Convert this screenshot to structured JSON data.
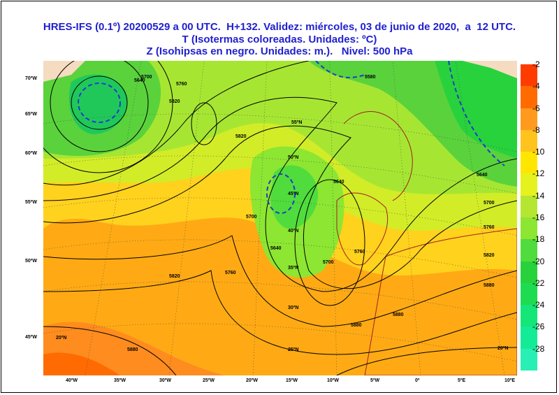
{
  "title": {
    "line1": "HRES-IFS (0.1º) 20200529 a 00 UTC.  H+132. Validez: miércoles, 03 de junio de 2020,  a  12 UTC.",
    "line2": "T (Isotermas coloreadas. Unidades: ºC)",
    "line3": "Z (Isohipsas en negro. Unidades: m.).   Nivel: 500 hPa"
  },
  "y_ticks": [
    "70ºW",
    "65ºW",
    "60ºW",
    "55ºW",
    "50ºW",
    "45ºW"
  ],
  "x_ticks": [
    "40ºW",
    "35ºW",
    "30ºW",
    "25ºW",
    "20ºW",
    "15ºW",
    "10ºW",
    "5ºW",
    "0º",
    "5ºE",
    "10ºE"
  ],
  "grid_labels": [
    "55ºN",
    "50ºN",
    "45ºN",
    "40ºN",
    "35ºN",
    "30ºN",
    "25ºN",
    "20ºN",
    "20ºN"
  ],
  "isohypse_labels": [
    "5700",
    "5760",
    "5820",
    "5640",
    "5640",
    "5700",
    "5760",
    "5820",
    "5640",
    "5700",
    "5760",
    "5820",
    "5880",
    "5880",
    "5580",
    "5640",
    "5700",
    "5760",
    "5820",
    "5880",
    "5880"
  ],
  "legend": {
    "labels": [
      "-2",
      "-4",
      "-6",
      "-8",
      "-10",
      "-12",
      "-14",
      "-16",
      "-18",
      "-20",
      "-22",
      "-24",
      "-26",
      "-28"
    ],
    "colors": [
      "#ff3c00",
      "#ff6b00",
      "#ff9a1e",
      "#ffc31e",
      "#ffe600",
      "#e6f21e",
      "#b4e632",
      "#8ce632",
      "#50dc3c",
      "#28d23c",
      "#1edc50",
      "#14e678",
      "#14eb96",
      "#28f0b4"
    ]
  },
  "map_colors": {
    "sea_warm": "#ff8c1e",
    "sea_orange": "#ffaa14",
    "yellow": "#ffd21e",
    "yellow_green": "#d2ec28",
    "light_green": "#a6e632",
    "green": "#5ad23c",
    "teal_green": "#20c85a",
    "land": "#f5dcc0",
    "dashed": "#1e3cc8",
    "coast": "#a02020"
  }
}
